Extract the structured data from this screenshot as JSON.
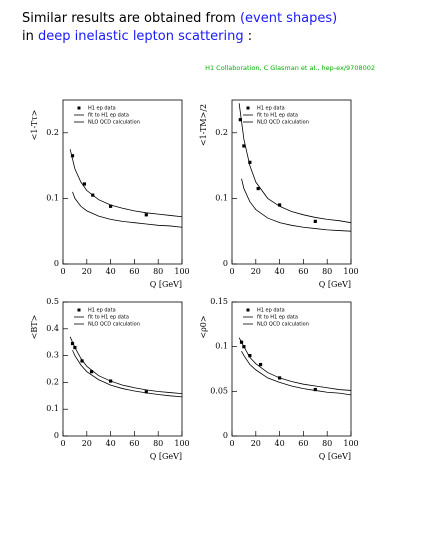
{
  "header": {
    "line1": [
      "Similar results are obtained from",
      "(event shapes)"
    ],
    "line2": [
      "in",
      "deep inelastic lepton scattering",
      ":"
    ],
    "citation": "H1 Collaboration, C Glasman et al., hep-ex/9708002"
  },
  "chart_data": [
    {
      "type": "scatter",
      "ylabel": "<1-Tτ>",
      "xlabel": "Q  [GeV]",
      "xlim": [
        0,
        100
      ],
      "xticks": [
        0,
        20,
        40,
        60,
        80,
        100
      ],
      "ylim": [
        0,
        0.25
      ],
      "yticks": [
        0,
        0.1,
        0.2
      ],
      "series": [
        {
          "name": "H1 ep data",
          "mode": "markers",
          "color": "#000000",
          "x": [
            8,
            18,
            25,
            40,
            70
          ],
          "values": [
            0.165,
            0.122,
            0.105,
            0.088,
            0.075
          ]
        },
        {
          "name": "fit to H1 ep data",
          "mode": "line",
          "color": "#000000",
          "x": [
            6,
            10,
            15,
            20,
            30,
            40,
            50,
            60,
            70,
            80,
            90,
            100
          ],
          "values": [
            0.175,
            0.145,
            0.125,
            0.112,
            0.098,
            0.09,
            0.085,
            0.081,
            0.078,
            0.076,
            0.074,
            0.072
          ]
        },
        {
          "name": "NLO QCD calculation",
          "mode": "line",
          "color": "#000000",
          "x": [
            8,
            10,
            15,
            20,
            30,
            40,
            50,
            60,
            70,
            80,
            90,
            100
          ],
          "values": [
            0.11,
            0.1,
            0.088,
            0.081,
            0.073,
            0.068,
            0.065,
            0.063,
            0.061,
            0.059,
            0.058,
            0.056
          ]
        }
      ]
    },
    {
      "type": "scatter",
      "ylabel": "<1-TM>/2",
      "xlabel": "Q  [GeV]",
      "xlim": [
        0,
        100
      ],
      "xticks": [
        0,
        20,
        40,
        60,
        80,
        100
      ],
      "ylim": [
        0,
        0.25
      ],
      "yticks": [
        0,
        0.1,
        0.2
      ],
      "series": [
        {
          "name": "H1 ep data",
          "mode": "markers",
          "color": "#000000",
          "x": [
            7,
            10,
            15,
            22,
            40,
            70
          ],
          "values": [
            0.22,
            0.18,
            0.155,
            0.115,
            0.09,
            0.065
          ]
        },
        {
          "name": "fit to H1 ep data",
          "mode": "line",
          "color": "#000000",
          "x": [
            6,
            10,
            15,
            20,
            30,
            40,
            50,
            60,
            70,
            80,
            90,
            100
          ],
          "values": [
            0.245,
            0.19,
            0.15,
            0.125,
            0.1,
            0.088,
            0.08,
            0.075,
            0.071,
            0.068,
            0.066,
            0.063
          ]
        },
        {
          "name": "NLO QCD calculation",
          "mode": "line",
          "color": "#000000",
          "x": [
            8,
            10,
            15,
            20,
            30,
            40,
            50,
            60,
            70,
            80,
            90,
            100
          ],
          "values": [
            0.13,
            0.115,
            0.095,
            0.083,
            0.07,
            0.063,
            0.059,
            0.056,
            0.054,
            0.052,
            0.051,
            0.05
          ]
        }
      ]
    },
    {
      "type": "scatter",
      "ylabel": "<BT>",
      "xlabel": "Q  [GeV]",
      "xlim": [
        0,
        100
      ],
      "xticks": [
        0,
        20,
        40,
        60,
        80,
        100
      ],
      "ylim": [
        0,
        0.5
      ],
      "yticks": [
        0,
        0.1,
        0.2,
        0.3,
        0.4,
        0.5
      ],
      "series": [
        {
          "name": "H1 ep data",
          "mode": "markers",
          "color": "#000000",
          "x": [
            8,
            10,
            16,
            24,
            40,
            70
          ],
          "values": [
            0.345,
            0.33,
            0.28,
            0.24,
            0.205,
            0.165
          ]
        },
        {
          "name": "fit to H1 ep data",
          "mode": "line",
          "color": "#000000",
          "x": [
            6,
            10,
            15,
            20,
            30,
            40,
            50,
            60,
            70,
            80,
            90,
            100
          ],
          "values": [
            0.37,
            0.33,
            0.29,
            0.26,
            0.225,
            0.205,
            0.19,
            0.18,
            0.172,
            0.166,
            0.162,
            0.158
          ]
        },
        {
          "name": "NLO QCD calculation",
          "mode": "line",
          "color": "#000000",
          "x": [
            8,
            10,
            15,
            20,
            30,
            40,
            50,
            60,
            70,
            80,
            90,
            100
          ],
          "values": [
            0.32,
            0.3,
            0.265,
            0.24,
            0.21,
            0.19,
            0.177,
            0.168,
            0.161,
            0.155,
            0.15,
            0.146
          ]
        }
      ]
    },
    {
      "type": "scatter",
      "ylabel": "<ρ0>",
      "xlabel": "Q  [GeV]",
      "xlim": [
        0,
        100
      ],
      "xticks": [
        0,
        20,
        40,
        60,
        80,
        100
      ],
      "ylim": [
        0,
        0.15
      ],
      "yticks": [
        0,
        0.05,
        0.1,
        0.15
      ],
      "series": [
        {
          "name": "H1 ep data",
          "mode": "markers",
          "color": "#000000",
          "x": [
            8,
            10,
            15,
            24,
            40,
            70
          ],
          "values": [
            0.105,
            0.1,
            0.09,
            0.08,
            0.065,
            0.052
          ]
        },
        {
          "name": "fit to H1 ep data",
          "mode": "line",
          "color": "#000000",
          "x": [
            6,
            10,
            15,
            20,
            30,
            40,
            50,
            60,
            70,
            80,
            90,
            100
          ],
          "values": [
            0.11,
            0.1,
            0.088,
            0.081,
            0.071,
            0.065,
            0.061,
            0.058,
            0.056,
            0.054,
            0.052,
            0.051
          ]
        },
        {
          "name": "NLO QCD calculation",
          "mode": "line",
          "color": "#000000",
          "x": [
            8,
            10,
            15,
            20,
            30,
            40,
            50,
            60,
            70,
            80,
            90,
            100
          ],
          "values": [
            0.095,
            0.09,
            0.08,
            0.074,
            0.065,
            0.06,
            0.056,
            0.053,
            0.051,
            0.049,
            0.048,
            0.046
          ]
        }
      ]
    }
  ]
}
